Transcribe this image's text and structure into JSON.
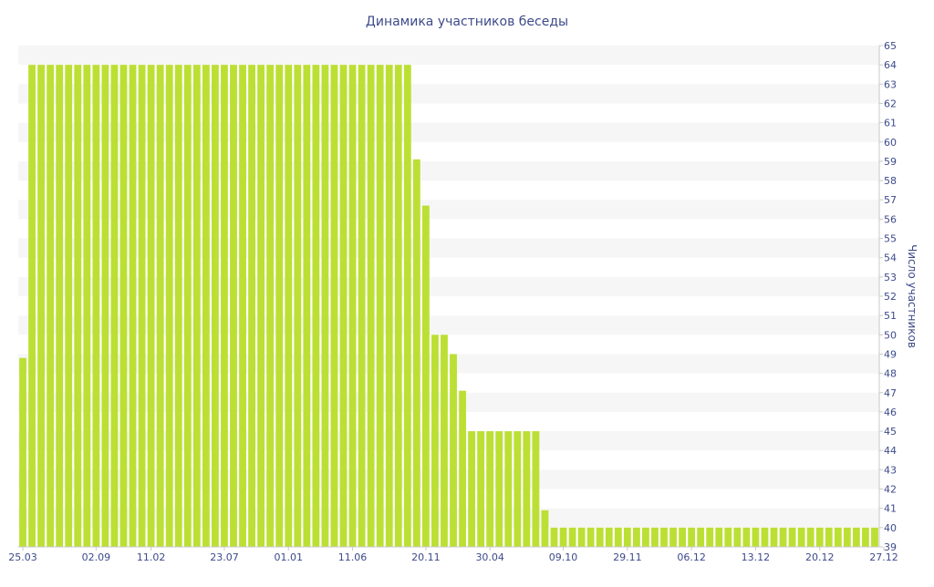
{
  "chart_data": {
    "type": "bar",
    "title": "Динамика участников беседы",
    "xlabel": "",
    "ylabel": "Число участников",
    "ylim": [
      39,
      65
    ],
    "grid": "alternating horizontal bands",
    "y_axis_side": "right",
    "colors": {
      "bar": "#bcdf34",
      "band": "#f6f6f6",
      "text": "#3d4a8a",
      "axis": "#c8c8c8"
    },
    "x_tick_labels": [
      {
        "index": 0,
        "label": "25.03"
      },
      {
        "index": 8,
        "label": "02.09"
      },
      {
        "index": 14,
        "label": "11.02"
      },
      {
        "index": 22,
        "label": "23.07"
      },
      {
        "index": 29,
        "label": "01.01"
      },
      {
        "index": 36,
        "label": "11.06"
      },
      {
        "index": 44,
        "label": "20.11"
      },
      {
        "index": 51,
        "label": "30.04"
      },
      {
        "index": 59,
        "label": "09.10"
      },
      {
        "index": 66,
        "label": "29.11"
      },
      {
        "index": 73,
        "label": "06.12"
      },
      {
        "index": 80,
        "label": "13.12"
      },
      {
        "index": 87,
        "label": "20.12"
      },
      {
        "index": 94,
        "label": "27.12"
      }
    ],
    "values": [
      48.8,
      64,
      64,
      64,
      64,
      64,
      64,
      64,
      64,
      64,
      64,
      64,
      64,
      64,
      64,
      64,
      64,
      64,
      64,
      64,
      64,
      64,
      64,
      64,
      64,
      64,
      64,
      64,
      64,
      64,
      64,
      64,
      64,
      64,
      64,
      64,
      64,
      64,
      64,
      64,
      64,
      64,
      64,
      59.1,
      56.7,
      50,
      50,
      49,
      47.1,
      45,
      45,
      45,
      45,
      45,
      45,
      45,
      45,
      40.9,
      40,
      40,
      40,
      40,
      40,
      40,
      40,
      40,
      40,
      40,
      40,
      40,
      40,
      40,
      40,
      40,
      40,
      40,
      40,
      40,
      40,
      40,
      40,
      40,
      40,
      40,
      40,
      40,
      40,
      40,
      40,
      40,
      40,
      40,
      40,
      40
    ]
  }
}
